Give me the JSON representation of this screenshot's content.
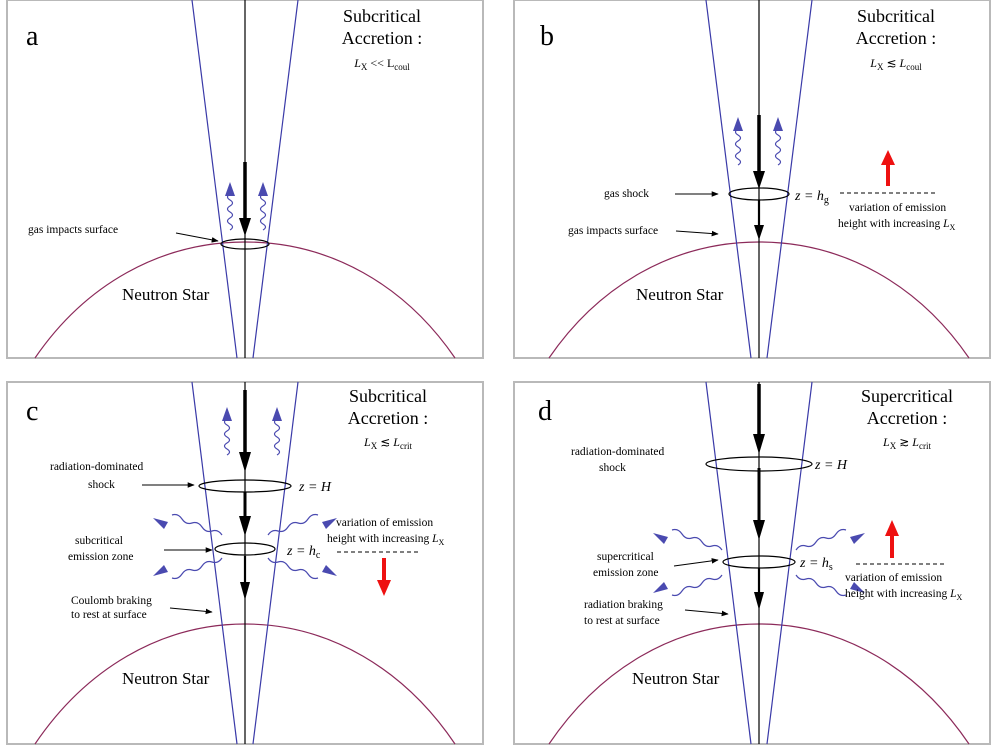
{
  "panels": [
    {
      "letter": "a",
      "title_line1": "Subcritical",
      "title_line2": "Accretion :",
      "condition": "L_X << L_coul",
      "star_label": "Neutron Star",
      "labels": [
        "gas impacts surface"
      ],
      "levels": [],
      "variation_text": []
    },
    {
      "letter": "b",
      "title_line1": "Subcritical",
      "title_line2": "Accretion :",
      "condition": "L_X ≲ L_coul",
      "star_label": "Neutron Star",
      "labels": [
        "gas shock",
        "gas impacts surface"
      ],
      "levels": [
        "z = h_g"
      ],
      "variation_text": [
        "variation of emission",
        "height with increasing L_X"
      ]
    },
    {
      "letter": "c",
      "title_line1": "Subcritical",
      "title_line2": "Accretion :",
      "condition": "L_X ≲ L_crit",
      "star_label": "Neutron Star",
      "labels": [
        "radiation-dominated",
        "shock",
        "subcritical",
        "emission zone",
        "Coulomb braking",
        "to rest at surface"
      ],
      "levels": [
        "z = H",
        "z = h_c"
      ],
      "variation_text": [
        "variation of emission",
        "height with increasing L_X"
      ]
    },
    {
      "letter": "d",
      "title_line1": "Supercritical",
      "title_line2": "Accretion :",
      "condition": "L_X ≳ L_crit",
      "star_label": "Neutron Star",
      "labels": [
        "radiation-dominated",
        "shock",
        "supercritical",
        "emission zone",
        "radiation braking",
        "to rest at surface"
      ],
      "levels": [
        "z = H",
        "z = h_s"
      ],
      "variation_text": [
        "variation of emission",
        "height with increasing L_X"
      ]
    }
  ],
  "colors": {
    "frame": "#b9b9b9",
    "column": "#3a3aa8",
    "star": "#8c2a5a",
    "photon": "#4a4ab0",
    "variation_arrow": "#ee1111",
    "flow_arrow": "#000000"
  }
}
